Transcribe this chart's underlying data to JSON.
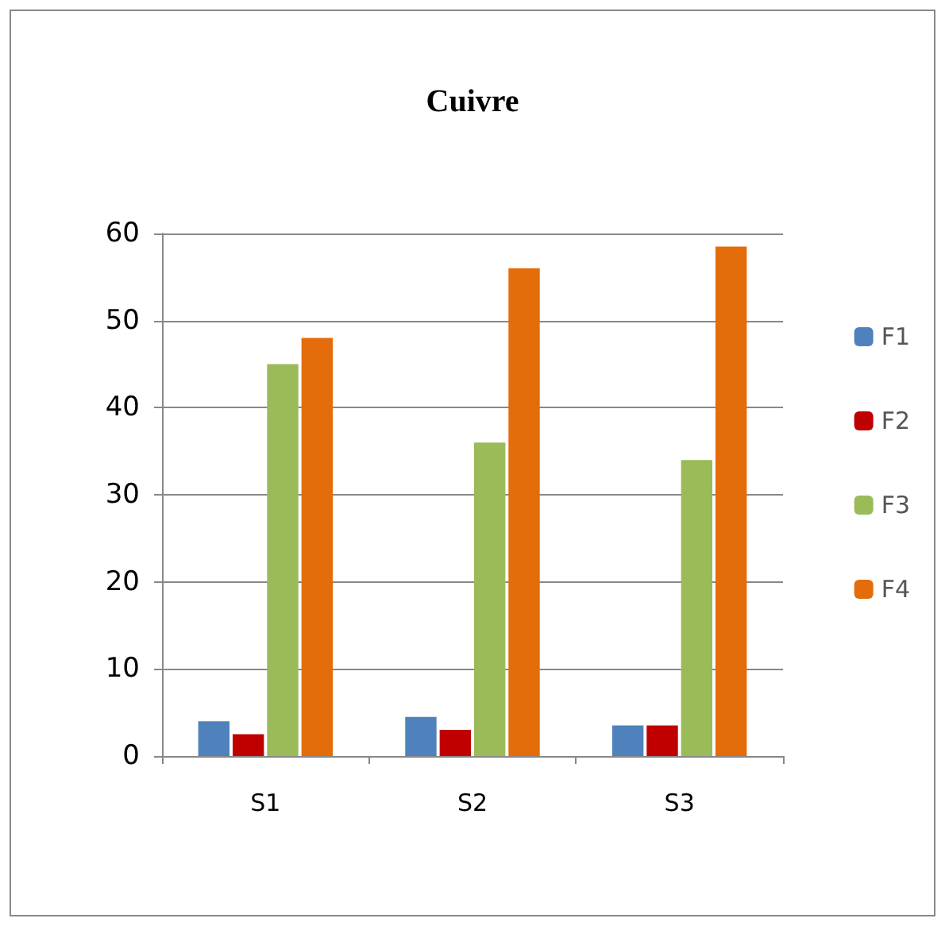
{
  "chart_data": {
    "type": "bar",
    "title": "Cuivre",
    "categories": [
      "S1",
      "S2",
      "S3"
    ],
    "series": [
      {
        "name": "F1",
        "color": "#4f81bd",
        "values": [
          4,
          4.5,
          3.5
        ]
      },
      {
        "name": "F2",
        "color": "#c00000",
        "values": [
          2.5,
          3,
          3.5
        ]
      },
      {
        "name": "F3",
        "color": "#9bbb59",
        "values": [
          45,
          36,
          34
        ]
      },
      {
        "name": "F4",
        "color": "#e46c0a",
        "values": [
          48,
          56,
          58.5
        ]
      }
    ],
    "ylim": [
      0,
      60
    ],
    "yticks": [
      0,
      10,
      20,
      30,
      40,
      50,
      60
    ],
    "grid": "y",
    "legend": "right"
  }
}
